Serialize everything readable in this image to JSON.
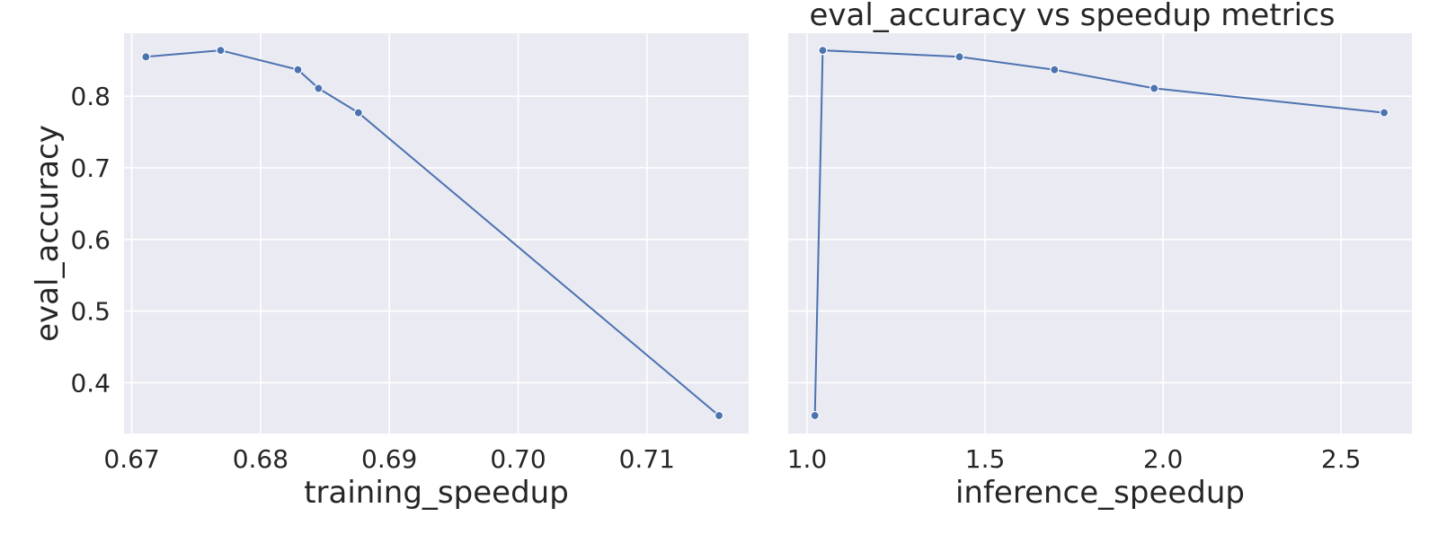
{
  "figure": {
    "title": "eval_accuracy vs speedup metrics"
  },
  "chart_data": [
    {
      "type": "line",
      "title": "",
      "xlabel": "training_speedup",
      "ylabel": "eval_accuracy",
      "xlim": [
        0.6694,
        0.7179
      ],
      "ylim": [
        0.329,
        0.888
      ],
      "xticks": [
        "0.67",
        "0.68",
        "0.69",
        "0.70",
        "0.71"
      ],
      "yticks": [
        "0.4",
        "0.5",
        "0.6",
        "0.7",
        "0.8"
      ],
      "grid": true,
      "color": "#4c72b0",
      "series": [
        {
          "x": [
            0.6711,
            0.6769,
            0.6829,
            0.6845,
            0.6876,
            0.7156
          ],
          "y": [
            0.855,
            0.864,
            0.837,
            0.811,
            0.777,
            0.354
          ]
        }
      ]
    },
    {
      "type": "line",
      "title": "eval_accuracy vs speedup metrics",
      "xlabel": "inference_speedup",
      "ylabel": "",
      "xlim": [
        0.947,
        2.699
      ],
      "ylim": [
        0.329,
        0.888
      ],
      "xticks": [
        "1.0",
        "1.5",
        "2.0",
        "2.5"
      ],
      "yticks": [
        "0.4",
        "0.5",
        "0.6",
        "0.7",
        "0.8"
      ],
      "grid": true,
      "color": "#4c72b0",
      "series": [
        {
          "x": [
            1.022,
            1.044,
            1.428,
            1.695,
            1.975,
            2.621
          ],
          "y": [
            0.354,
            0.864,
            0.855,
            0.837,
            0.811,
            0.777
          ]
        }
      ]
    }
  ]
}
